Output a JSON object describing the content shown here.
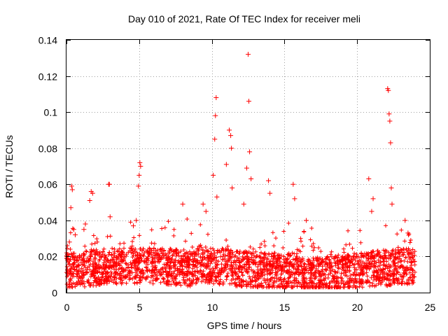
{
  "chart_data": {
    "type": "scatter",
    "title": "Day 010 of 2021, Rate Of TEC Index for receiver meli",
    "xlabel": "GPS time / hours",
    "ylabel": "ROTI / TECUs",
    "xlim": [
      0,
      25
    ],
    "ylim": [
      0,
      0.14
    ],
    "xticks": [
      0,
      5,
      10,
      15,
      20,
      25
    ],
    "xtick_labels": [
      "0",
      "5",
      "10",
      "15",
      "20",
      "25"
    ],
    "yticks": [
      0,
      0.02,
      0.04,
      0.06,
      0.08,
      0.1,
      0.12,
      0.14
    ],
    "ytick_labels": [
      "0",
      "0.02",
      "0.04",
      "0.06",
      "0.08",
      "0.1",
      "0.12",
      "0.14"
    ],
    "grid": true,
    "marker": "+",
    "color": "#ff0000",
    "series": [
      {
        "name": "ROTI",
        "points": [
          [
            0.2,
            0.028
          ],
          [
            0.3,
            0.047
          ],
          [
            0.35,
            0.059
          ],
          [
            0.4,
            0.057
          ],
          [
            0.5,
            0.035
          ],
          [
            0.6,
            0.032
          ],
          [
            1.2,
            0.035
          ],
          [
            1.3,
            0.038
          ],
          [
            1.6,
            0.051
          ],
          [
            1.7,
            0.056
          ],
          [
            1.8,
            0.055
          ],
          [
            2.9,
            0.06
          ],
          [
            2.95,
            0.06
          ],
          [
            3.0,
            0.042
          ],
          [
            4.6,
            0.037
          ],
          [
            4.8,
            0.04
          ],
          [
            4.95,
            0.059
          ],
          [
            5.0,
            0.065
          ],
          [
            5.05,
            0.072
          ],
          [
            5.1,
            0.07
          ],
          [
            8.0,
            0.049
          ],
          [
            9.4,
            0.049
          ],
          [
            9.6,
            0.045
          ],
          [
            10.1,
            0.065
          ],
          [
            10.2,
            0.085
          ],
          [
            10.25,
            0.098
          ],
          [
            10.3,
            0.108
          ],
          [
            10.35,
            0.053
          ],
          [
            11.0,
            0.071
          ],
          [
            11.2,
            0.09
          ],
          [
            11.3,
            0.087
          ],
          [
            11.35,
            0.08
          ],
          [
            11.4,
            0.058
          ],
          [
            12.2,
            0.049
          ],
          [
            12.4,
            0.069
          ],
          [
            12.5,
            0.132
          ],
          [
            12.55,
            0.106
          ],
          [
            12.6,
            0.078
          ],
          [
            12.7,
            0.063
          ],
          [
            13.9,
            0.062
          ],
          [
            14.0,
            0.055
          ],
          [
            15.6,
            0.06
          ],
          [
            15.7,
            0.052
          ],
          [
            16.5,
            0.04
          ],
          [
            20.8,
            0.063
          ],
          [
            21.0,
            0.045
          ],
          [
            21.1,
            0.052
          ],
          [
            22.1,
            0.113
          ],
          [
            22.15,
            0.112
          ],
          [
            22.2,
            0.099
          ],
          [
            22.25,
            0.095
          ],
          [
            22.3,
            0.083
          ],
          [
            22.35,
            0.058
          ],
          [
            22.4,
            0.049
          ],
          [
            23.3,
            0.04
          ],
          [
            23.5,
            0.033
          ]
        ]
      }
    ]
  }
}
